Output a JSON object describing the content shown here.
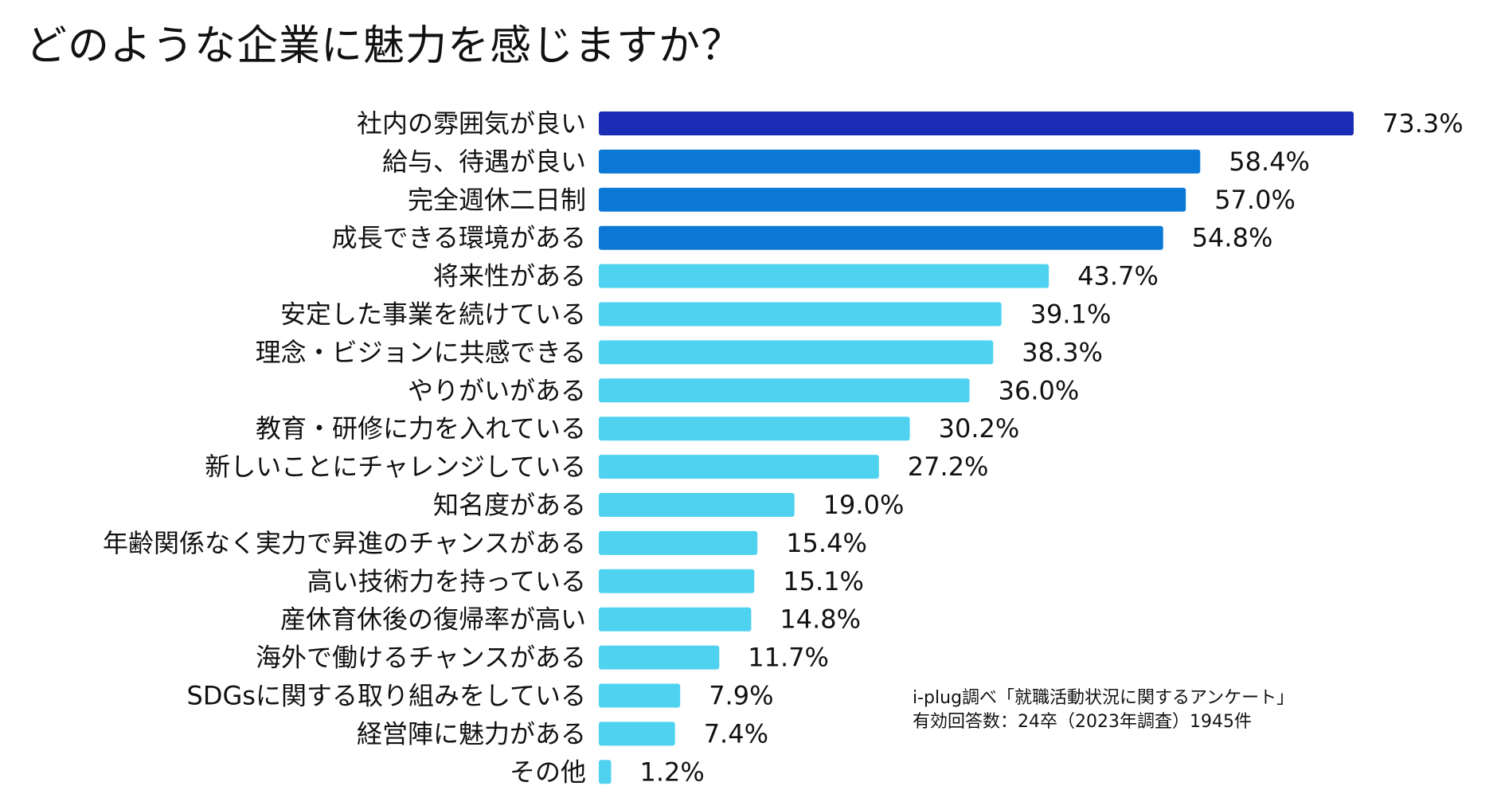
{
  "title": "どのような企業に魅力を感じますか？",
  "source": {
    "line1": "i-plug調べ「就職活動状況に関するアンケート」",
    "line2": "有効回答数：24卒（2023年調査）1945件"
  },
  "chart_data": {
    "type": "bar",
    "orientation": "horizontal",
    "title": "どのような企業に魅力を感じますか？",
    "xlabel": "",
    "ylabel": "",
    "xlim": [
      0,
      73.3
    ],
    "grid": false,
    "legend": "none",
    "value_suffix": "%",
    "categories": [
      "社内の雰囲気が良い",
      "給与、待遇が良い",
      "完全週休二日制",
      "成長できる環境がある",
      "将来性がある",
      "安定した事業を続けている",
      "理念・ビジョンに共感できる",
      "やりがいがある",
      "教育・研修に力を入れている",
      "新しいことにチャレンジしている",
      "知名度がある",
      "年齢関係なく実力で昇進のチャンスがある",
      "高い技術力を持っている",
      "産休育休後の復帰率が高い",
      "海外で働けるチャンスがある",
      "SDGsに関する取り組みをしている",
      "経営陣に魅力がある",
      "その他"
    ],
    "values": [
      73.3,
      58.4,
      57.0,
      54.8,
      43.7,
      39.1,
      38.3,
      36.0,
      30.2,
      27.2,
      19.0,
      15.4,
      15.1,
      14.8,
      11.7,
      7.9,
      7.4,
      1.2
    ],
    "value_labels": [
      "73.3%",
      "58.4%",
      "57.0%",
      "54.8%",
      "43.7%",
      "39.1%",
      "38.3%",
      "36.0%",
      "30.2%",
      "27.2%",
      "19.0%",
      "15.4%",
      "15.1%",
      "14.8%",
      "11.7%",
      "7.9%",
      "7.4%",
      "1.2%"
    ],
    "bar_colors": [
      "#1b2db4",
      "#0b78d6",
      "#0b78d6",
      "#0b78d6",
      "#4fd2ef",
      "#4fd2ef",
      "#4fd2ef",
      "#4fd2ef",
      "#4fd2ef",
      "#4fd2ef",
      "#4fd2ef",
      "#4fd2ef",
      "#4fd2ef",
      "#4fd2ef",
      "#4fd2ef",
      "#4fd2ef",
      "#4fd2ef",
      "#4fd2ef"
    ]
  }
}
